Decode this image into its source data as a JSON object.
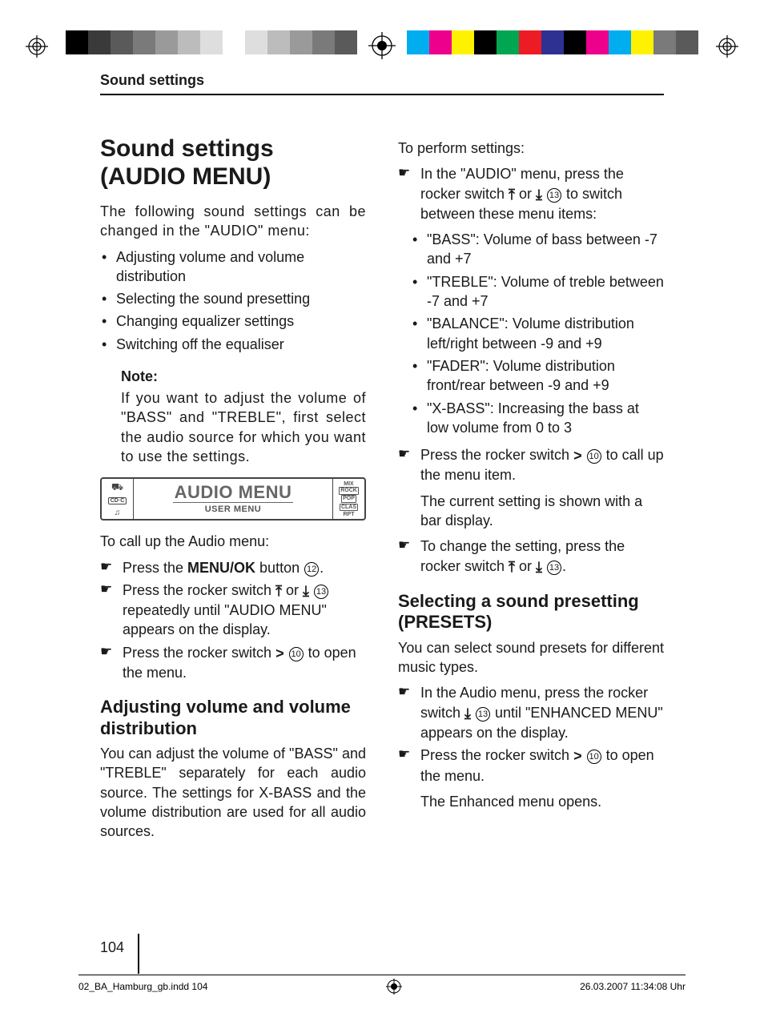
{
  "colorbar": {
    "left": [
      "#000000",
      "#3a3a3a",
      "#5a5a5a",
      "#7a7a7a",
      "#9a9a9a",
      "#bcbcbc",
      "#dedede",
      "#ffffff",
      "#dedede",
      "#bcbcbc",
      "#9a9a9a",
      "#7a7a7a",
      "#5a5a5a"
    ],
    "right": [
      "#00aeef",
      "#ec008c",
      "#fff200",
      "#000000",
      "#00a651",
      "#ed1c24",
      "#2e3192",
      "#000000",
      "#ec008c",
      "#00aeef",
      "#fff200",
      "#7a7a7a",
      "#5a5a5a"
    ]
  },
  "header": "Sound settings",
  "col1": {
    "h1_l1": "Sound settings",
    "h1_l2": "(AUDIO MENU)",
    "intro": "The following sound settings can be changed in the \"AUDIO\" menu:",
    "items": [
      "Adjusting volume and volume distribution",
      "Selecting the sound presetting",
      "Changing equalizer settings",
      "Switching off the equaliser"
    ],
    "note_label": "Note:",
    "note_body": "If you want to adjust the volume of \"BASS\" and \"TREBLE\", first select the audio source for which you want to use the settings.",
    "display": {
      "title": "AUDIO MENU",
      "sub": "USER MENU",
      "left_cdc": "CD·C",
      "right": [
        "MIX",
        "ROCK",
        "POP",
        "CLAS",
        "RPT"
      ]
    },
    "callup_intro": "To call up the Audio menu:",
    "step1_a": "Press the ",
    "step1_b": "MENU/OK",
    "step1_c": " button ",
    "step1_n": "12",
    "step1_d": ".",
    "step2_a": "Press the rocker switch ",
    "step2_b": " or ",
    "step2_n": "13",
    "step2_c": " repeatedly until \"AUDIO MENU\" appears on the display.",
    "step3_a": "Press the rocker switch ",
    "step3_n": "10",
    "step3_b": " to open the menu.",
    "h2_l1": "Adjusting volume and volume",
    "h2_l2": "distribution",
    "adj_body": "You can adjust the volume of \"BASS\" and \"TREBLE\" separately for each audio source. The settings for X-BASS and the volume distribution are used for all audio sources."
  },
  "col2": {
    "perf": "To perform settings:",
    "s1_a": "In the \"AUDIO\" menu, press the rocker switch ",
    "s1_b": " or ",
    "s1_n": "13",
    "s1_c": " to switch between these menu items:",
    "items": [
      "\"BASS\": Volume of bass between -7 and +7",
      "\"TREBLE\": Volume of treble between -7 and +7",
      "\"BALANCE\": Volume distribution left/right between -9 and +9",
      "\"FADER\": Volume distribution front/rear between -9 and +9",
      "\"X-BASS\": Increasing the bass at low volume from 0 to 3"
    ],
    "s2_a": "Press the rocker switch ",
    "s2_n": "10",
    "s2_b": " to call up the menu item.",
    "s2_plain": "The current setting is shown with a bar display.",
    "s3_a": "To change the setting, press the rocker switch ",
    "s3_b": " or ",
    "s3_n": "13",
    "s3_c": ".",
    "h2_l1": "Selecting a sound presetting",
    "h2_l2": "(PRESETS)",
    "presets_body": "You can select sound presets for different music types.",
    "p1_a": "In the Audio menu, press the rocker switch ",
    "p1_n": "13",
    "p1_b": " until \"ENHANCED MENU\" appears on the display.",
    "p2_a": "Press the rocker switch ",
    "p2_n": "10",
    "p2_b": " to open the menu.",
    "p2_plain": "The Enhanced menu opens."
  },
  "pagenum": "104",
  "footer": {
    "left": "02_BA_Hamburg_gb.indd   104",
    "right": "26.03.2007   11:34:08 Uhr"
  },
  "refs": {
    "n10": "10",
    "n12": "12",
    "n13": "13"
  }
}
